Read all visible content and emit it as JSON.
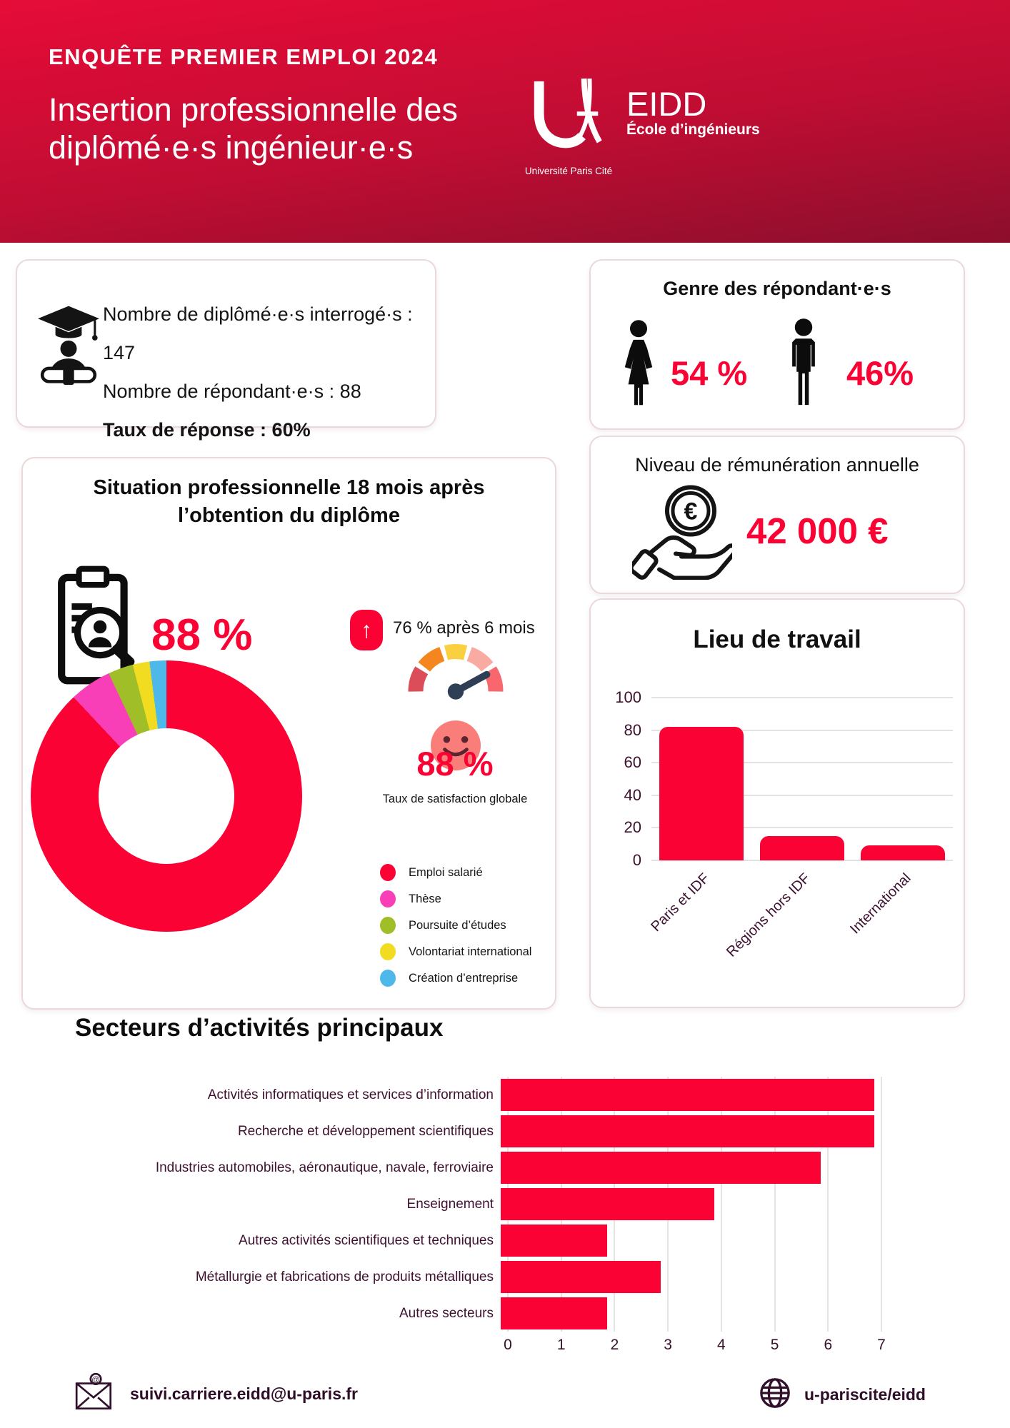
{
  "colors": {
    "accent_red": "#FB0235",
    "header_gradient_top": "#E60C38",
    "header_gradient_bottom": "#8C0E2C",
    "axis_text": "#3F1030",
    "gridline": "#E2E2E2",
    "card_border": "#EBD8D8"
  },
  "header": {
    "kicker": "ENQUÊTE PREMIER EMPLOI 2024",
    "title_line1": "Insertion professionnelle des",
    "title_line2": "diplômé·e·s ingénieur·e·s",
    "logo": {
      "school": "EIDD",
      "school_subtitle": "École d’ingénieurs",
      "university": "Université Paris Cité"
    }
  },
  "stats_box": {
    "line1": "Nombre de diplômé·e·s interrogé·s : 147",
    "line2": "Nombre de répondant·e·s : 88",
    "line3": "Taux de réponse : 60%"
  },
  "gender_box": {
    "title": "Genre des répondant·e·s",
    "female_pct": "54 %",
    "male_pct": "46%"
  },
  "salary_box": {
    "title": "Niveau de rémunération annuelle",
    "value": "42 000 €"
  },
  "situation_box": {
    "title_line1": "Situation professionnelle 18 mois après",
    "title_line2": "l’obtention du diplôme",
    "employment_rate": "88 %",
    "after_6_months": "76 % après 6 mois",
    "satisfaction_rate": "88 %",
    "satisfaction_label": "Taux de satisfaction globale"
  },
  "chart_data": [
    {
      "type": "pie",
      "donut": true,
      "title": "Situation professionnelle 18 mois après l’obtention du diplôme",
      "labels": [
        "Emploi salarié",
        "Thèse",
        "Poursuite d’études",
        "Volontariat international",
        "Création d’entreprise"
      ],
      "values": [
        88,
        5,
        3,
        2,
        2
      ],
      "unit": "%",
      "colors": [
        "#FB0235",
        "#F93FB8",
        "#9FBE27",
        "#F2DC22",
        "#4FB8EA"
      ],
      "legend_position": "right"
    },
    {
      "type": "bar",
      "title": "Lieu de travail",
      "categories": [
        "Paris et IDF",
        "Régions hors IDF",
        "International"
      ],
      "values": [
        82,
        15,
        9
      ],
      "unit": "%",
      "ylim": [
        0,
        100
      ],
      "yticks": [
        0,
        20,
        40,
        60,
        80,
        100
      ],
      "grid": true,
      "bar_color": "#FB0235"
    },
    {
      "type": "barh",
      "title": "Secteurs d’activités principaux",
      "categories": [
        "Activités informatiques et services d’information",
        "Recherche et développement scientifiques",
        "Industries automobiles, aéronautique, navale, ferroviaire",
        "Enseignement",
        "Autres activités scientifiques et techniques",
        "Métallurgie et fabrications de produits métalliques",
        "Autres secteurs"
      ],
      "values": [
        7,
        7,
        6,
        4,
        2,
        3,
        2
      ],
      "xlim": [
        0,
        7
      ],
      "xticks": [
        0,
        1,
        2,
        3,
        4,
        5,
        6,
        7
      ],
      "grid": true,
      "bar_color": "#FB0235"
    }
  ],
  "footer": {
    "email": "suivi.carriere.eidd@u-paris.fr",
    "website": "u-pariscite/eidd"
  }
}
